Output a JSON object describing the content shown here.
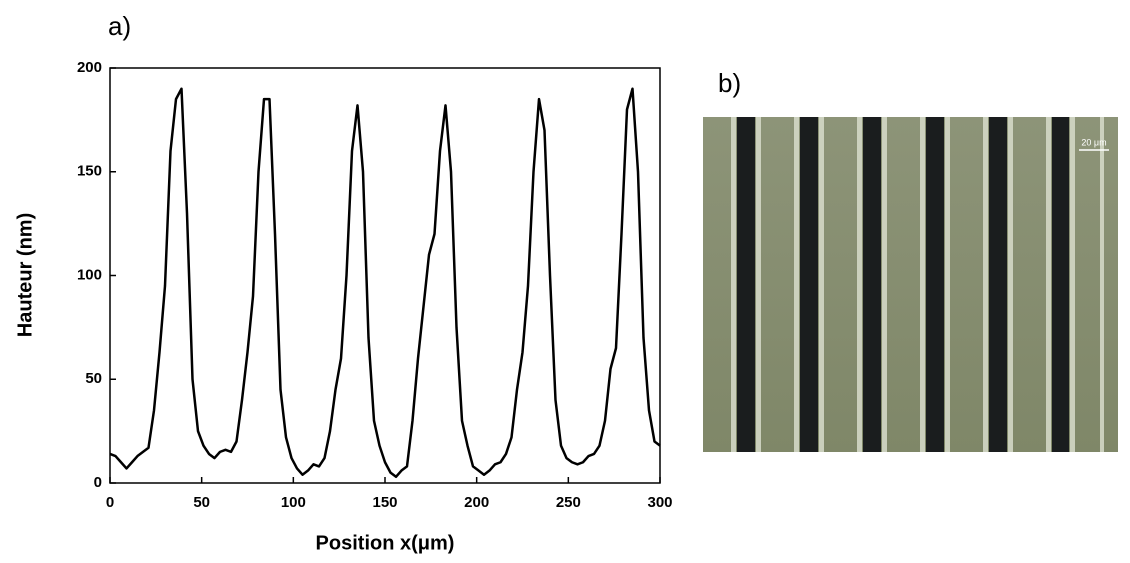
{
  "chart_data": {
    "type": "line",
    "panel_label": "a)",
    "xlabel": "Position x(μm)",
    "ylabel": "Hauteur (nm)",
    "x": [
      0,
      3,
      6,
      9,
      12,
      15,
      18,
      21,
      24,
      27,
      30,
      33,
      36,
      39,
      42,
      45,
      48,
      51,
      54,
      57,
      60,
      63,
      66,
      69,
      72,
      75,
      78,
      81,
      84,
      87,
      90,
      93,
      96,
      99,
      102,
      105,
      108,
      111,
      114,
      117,
      120,
      123,
      126,
      129,
      132,
      135,
      138,
      141,
      144,
      147,
      150,
      153,
      156,
      159,
      162,
      165,
      168,
      171,
      174,
      177,
      180,
      183,
      186,
      189,
      192,
      195,
      198,
      201,
      204,
      207,
      210,
      213,
      216,
      219,
      222,
      225,
      228,
      231,
      234,
      237,
      240,
      243,
      246,
      249,
      252,
      255,
      258,
      261,
      264,
      267,
      270,
      273,
      276,
      279,
      282,
      285,
      288,
      291,
      294,
      297,
      300
    ],
    "series": [
      {
        "color": "#000000",
        "values": [
          14,
          13,
          10,
          7,
          10,
          13,
          15,
          17,
          35,
          63,
          95,
          160,
          185,
          190,
          130,
          50,
          25,
          18,
          14,
          12,
          15,
          16,
          15,
          20,
          40,
          63,
          90,
          150,
          185,
          185,
          120,
          45,
          22,
          12,
          7,
          4,
          6,
          9,
          8,
          12,
          25,
          45,
          60,
          100,
          160,
          182,
          150,
          70,
          30,
          18,
          10,
          5,
          3,
          6,
          8,
          30,
          60,
          85,
          110,
          120,
          160,
          182,
          150,
          75,
          30,
          18,
          8,
          6,
          4,
          6,
          9,
          10,
          14,
          22,
          45,
          63,
          95,
          150,
          185,
          170,
          100,
          40,
          18,
          12,
          10,
          9,
          10,
          13,
          14,
          18,
          30,
          55,
          65,
          120,
          180,
          190,
          150,
          70,
          35,
          20,
          18
        ]
      }
    ],
    "xlim": [
      0,
      300
    ],
    "xticks": [
      0,
      50,
      100,
      150,
      200,
      250,
      300
    ],
    "ylim": [
      0,
      200
    ],
    "yticks": [
      0,
      50,
      100,
      150,
      200
    ]
  },
  "image_panel": {
    "label": "b)",
    "scale_bar": "20 μm"
  }
}
